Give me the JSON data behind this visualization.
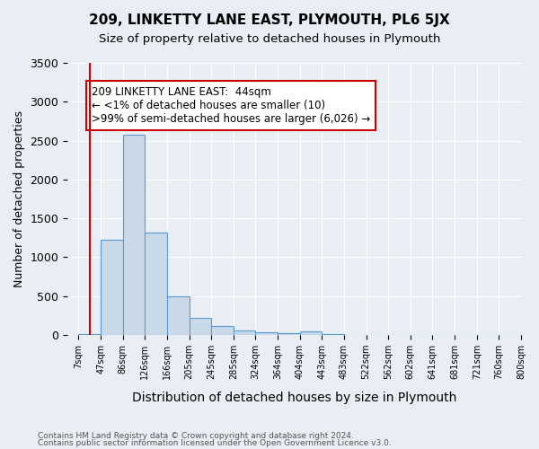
{
  "title": "209, LINKETTY LANE EAST, PLYMOUTH, PL6 5JX",
  "subtitle": "Size of property relative to detached houses in Plymouth",
  "xlabel": "Distribution of detached houses by size in Plymouth",
  "ylabel": "Number of detached properties",
  "footer_line1": "Contains HM Land Registry data © Crown copyright and database right 2024.",
  "footer_line2": "Contains public sector information licensed under the Open Government Licence v3.0.",
  "annotation_line1": "209 LINKETTY LANE EAST:  44sqm",
  "annotation_line2": "← <1% of detached houses are smaller (10)",
  "annotation_line3": ">99% of semi-detached houses are larger (6,026) →",
  "bar_values": [
    10,
    1220,
    2570,
    1320,
    490,
    220,
    120,
    55,
    30,
    20,
    40,
    10,
    0,
    0,
    0,
    0,
    0,
    0,
    0,
    0
  ],
  "bar_labels": [
    "7sqm",
    "47sqm",
    "86sqm",
    "126sqm",
    "166sqm",
    "205sqm",
    "245sqm",
    "285sqm",
    "324sqm",
    "364sqm",
    "404sqm",
    "443sqm",
    "483sqm",
    "522sqm",
    "562sqm",
    "602sqm",
    "641sqm",
    "681sqm",
    "721sqm",
    "760sqm",
    "800sqm"
  ],
  "bar_color": "#c9d9e8",
  "bar_edge_color": "#5b9bd5",
  "red_line_x": 0,
  "annotation_box_color": "#ffffff",
  "annotation_box_edge": "#cc0000",
  "background_color": "#e8eef4",
  "plot_bg_color": "#e8eef4",
  "ylim": [
    0,
    3500
  ],
  "yticks": [
    0,
    500,
    1000,
    1500,
    2000,
    2500,
    3000,
    3500
  ]
}
